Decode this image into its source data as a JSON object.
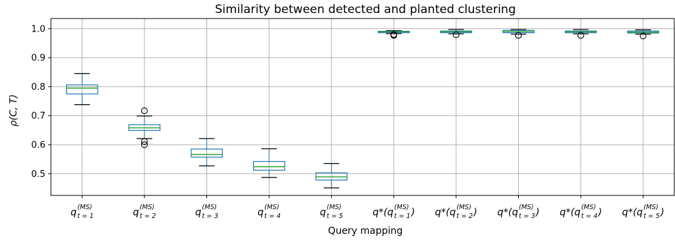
{
  "chart_data": {
    "type": "box",
    "title": "Similarity between detected and planted clustering",
    "xlabel": "Query mapping",
    "ylabel": "ρ(C, T)",
    "ylim": [
      0.425,
      1.035
    ],
    "yticks": [
      0.5,
      0.6,
      0.7,
      0.8,
      0.9,
      1.0
    ],
    "ytick_labels": [
      "0.5",
      "0.6",
      "0.7",
      "0.8",
      "0.9",
      "1.0"
    ],
    "grid": true,
    "colors": {
      "box": "#1f77b4",
      "median": "#2ca02c",
      "whisker": "#000000",
      "grid": "#b0b0b0"
    },
    "categories": [
      {
        "main": "q",
        "sup": "(MS)",
        "sub": "t = 1"
      },
      {
        "main": "q",
        "sup": "(MS)",
        "sub": "t = 2"
      },
      {
        "main": "q",
        "sup": "(MS)",
        "sub": "t = 3"
      },
      {
        "main": "q",
        "sup": "(MS)",
        "sub": "t = 4"
      },
      {
        "main": "q",
        "sup": "(MS)",
        "sub": "t = 5"
      },
      {
        "main": "q*(q",
        "sup": "(MS)",
        "sub": "t = 1",
        "close": ")"
      },
      {
        "main": "q*(q",
        "sup": "(MS)",
        "sub": "t = 2",
        "close": ")"
      },
      {
        "main": "q*(q",
        "sup": "(MS)",
        "sub": "t = 3",
        "close": ")"
      },
      {
        "main": "q*(q",
        "sup": "(MS)",
        "sub": "t = 4",
        "close": ")"
      },
      {
        "main": "q*(q",
        "sup": "(MS)",
        "sub": "t = 5",
        "close": ")"
      }
    ],
    "boxes": [
      {
        "whislo": 0.738,
        "q1": 0.775,
        "med": 0.795,
        "q3": 0.806,
        "whishi": 0.845,
        "fliers": []
      },
      {
        "whislo": 0.621,
        "q1": 0.649,
        "med": 0.658,
        "q3": 0.669,
        "whishi": 0.699,
        "fliers": [
          0.717,
          0.611,
          0.6
        ]
      },
      {
        "whislo": 0.527,
        "q1": 0.557,
        "med": 0.566,
        "q3": 0.585,
        "whishi": 0.621,
        "fliers": []
      },
      {
        "whislo": 0.487,
        "q1": 0.512,
        "med": 0.524,
        "q3": 0.542,
        "whishi": 0.586,
        "fliers": []
      },
      {
        "whislo": 0.451,
        "q1": 0.478,
        "med": 0.489,
        "q3": 0.503,
        "whishi": 0.535,
        "fliers": []
      },
      {
        "whislo": 0.983,
        "q1": 0.986,
        "med": 0.989,
        "q3": 0.991,
        "whishi": 0.993,
        "fliers": [
          0.98,
          0.977
        ]
      },
      {
        "whislo": 0.982,
        "q1": 0.986,
        "med": 0.989,
        "q3": 0.992,
        "whishi": 0.997,
        "fliers": [
          0.979
        ]
      },
      {
        "whislo": 0.981,
        "q1": 0.986,
        "med": 0.99,
        "q3": 0.994,
        "whishi": 0.997,
        "fliers": [
          0.977
        ]
      },
      {
        "whislo": 0.982,
        "q1": 0.986,
        "med": 0.989,
        "q3": 0.992,
        "whishi": 0.997,
        "fliers": [
          0.977
        ]
      },
      {
        "whislo": 0.981,
        "q1": 0.985,
        "med": 0.988,
        "q3": 0.992,
        "whishi": 0.996,
        "fliers": [
          0.975
        ]
      }
    ]
  }
}
